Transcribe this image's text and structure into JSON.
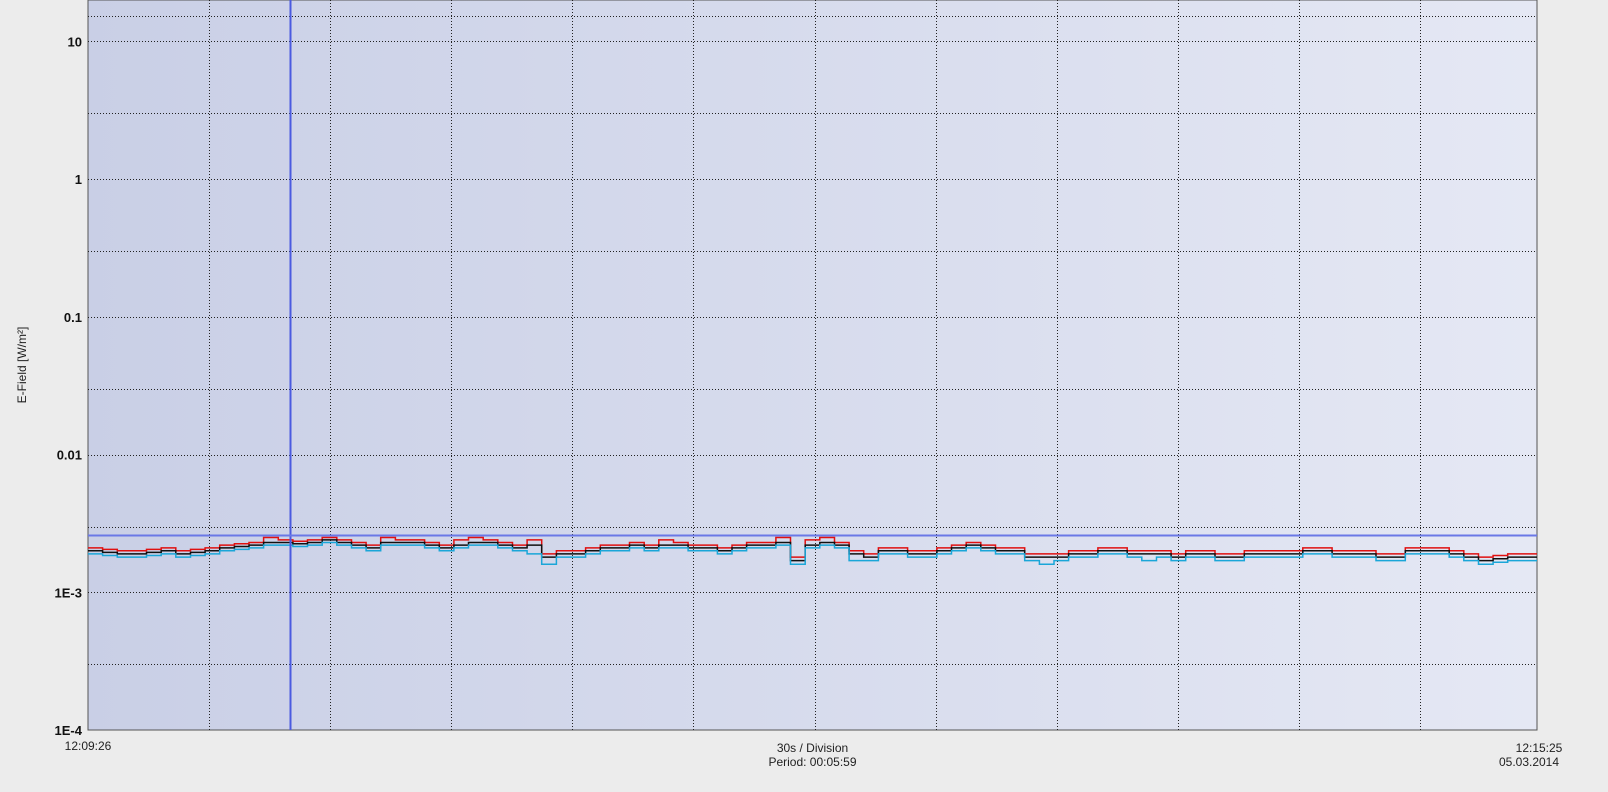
{
  "chart_data": {
    "type": "line",
    "ylabel": "E-Field [W/m²]",
    "yscale": "log",
    "ylim": [
      0.0001,
      20
    ],
    "y_tick_values": [
      10,
      1,
      0.1,
      0.01,
      0.001,
      0.0001
    ],
    "y_tick_labels": [
      "10",
      "1",
      "0.1",
      "0.01",
      "1E-3",
      "1E-4"
    ],
    "x_start_label": "12:09:26",
    "x_end_time": "12:15:25",
    "x_end_date": "05.03.2014",
    "x_center_line1": "30s / Division",
    "x_center_line2": "Period: 00:05:59",
    "x_range_seconds": [
      0,
      359
    ],
    "grid": true,
    "cursor_vertical_seconds": 50,
    "cursor_horizontal_value": 0.0026,
    "series": [
      {
        "color": "#e01010",
        "values": [
          0.0021,
          0.00205,
          0.002,
          0.002,
          0.00205,
          0.0021,
          0.002,
          0.00205,
          0.0021,
          0.0022,
          0.00225,
          0.0023,
          0.0025,
          0.0024,
          0.00235,
          0.0024,
          0.0025,
          0.0024,
          0.0023,
          0.0022,
          0.0025,
          0.0024,
          0.0024,
          0.0023,
          0.0022,
          0.0024,
          0.0025,
          0.0024,
          0.0023,
          0.0022,
          0.0024,
          0.0019,
          0.002,
          0.002,
          0.0021,
          0.0022,
          0.0022,
          0.0023,
          0.0022,
          0.0024,
          0.0023,
          0.0022,
          0.0022,
          0.0021,
          0.0022,
          0.0023,
          0.0023,
          0.0025,
          0.0018,
          0.0024,
          0.0025,
          0.0023,
          0.002,
          0.0019,
          0.0021,
          0.0021,
          0.002,
          0.002,
          0.0021,
          0.0022,
          0.0023,
          0.0022,
          0.0021,
          0.0021,
          0.0019,
          0.0019,
          0.0019,
          0.002,
          0.002,
          0.0021,
          0.0021,
          0.002,
          0.002,
          0.002,
          0.0019,
          0.002,
          0.002,
          0.0019,
          0.0019,
          0.002,
          0.002,
          0.002,
          0.002,
          0.0021,
          0.0021,
          0.002,
          0.002,
          0.002,
          0.0019,
          0.0019,
          0.0021,
          0.0021,
          0.0021,
          0.002,
          0.0019,
          0.0018,
          0.00185,
          0.0019,
          0.0019
        ],
        "name": ""
      },
      {
        "color": "#111111",
        "values": [
          0.002,
          0.00195,
          0.0019,
          0.0019,
          0.00195,
          0.002,
          0.0019,
          0.00195,
          0.002,
          0.0021,
          0.00215,
          0.0022,
          0.0023,
          0.0023,
          0.00225,
          0.0023,
          0.0024,
          0.0023,
          0.0022,
          0.0021,
          0.0023,
          0.0023,
          0.0023,
          0.0022,
          0.0021,
          0.0022,
          0.0023,
          0.0023,
          0.0022,
          0.0021,
          0.0022,
          0.0018,
          0.0019,
          0.0019,
          0.002,
          0.0021,
          0.0021,
          0.0022,
          0.0021,
          0.0022,
          0.0022,
          0.0021,
          0.0021,
          0.002,
          0.0021,
          0.0022,
          0.0022,
          0.0023,
          0.0017,
          0.0022,
          0.0023,
          0.0022,
          0.0019,
          0.0018,
          0.002,
          0.002,
          0.0019,
          0.0019,
          0.002,
          0.0021,
          0.0022,
          0.0021,
          0.002,
          0.002,
          0.0018,
          0.0018,
          0.0018,
          0.0019,
          0.0019,
          0.002,
          0.002,
          0.0019,
          0.0019,
          0.0019,
          0.0018,
          0.0019,
          0.0019,
          0.0018,
          0.0018,
          0.0019,
          0.0019,
          0.0019,
          0.0019,
          0.002,
          0.002,
          0.0019,
          0.0019,
          0.0019,
          0.0018,
          0.0018,
          0.002,
          0.002,
          0.002,
          0.0019,
          0.0018,
          0.0017,
          0.00175,
          0.0018,
          0.0018
        ],
        "name": ""
      },
      {
        "color": "#1aa6d8",
        "values": [
          0.0019,
          0.00185,
          0.0018,
          0.0018,
          0.00185,
          0.0019,
          0.0018,
          0.00185,
          0.0019,
          0.002,
          0.00205,
          0.0021,
          0.0022,
          0.0022,
          0.00215,
          0.0022,
          0.0023,
          0.0022,
          0.0021,
          0.002,
          0.0022,
          0.0022,
          0.0022,
          0.0021,
          0.002,
          0.0021,
          0.0022,
          0.0022,
          0.0021,
          0.002,
          0.0019,
          0.0016,
          0.0018,
          0.0018,
          0.0019,
          0.002,
          0.002,
          0.0021,
          0.002,
          0.0021,
          0.0021,
          0.002,
          0.002,
          0.0019,
          0.002,
          0.0021,
          0.0021,
          0.0022,
          0.0016,
          0.0021,
          0.0022,
          0.0021,
          0.0017,
          0.0017,
          0.0019,
          0.0019,
          0.0018,
          0.0018,
          0.0019,
          0.002,
          0.0021,
          0.002,
          0.0019,
          0.0019,
          0.0017,
          0.0016,
          0.0017,
          0.0018,
          0.0018,
          0.0019,
          0.0019,
          0.0018,
          0.0017,
          0.0018,
          0.0017,
          0.0018,
          0.0018,
          0.0017,
          0.0017,
          0.0018,
          0.0018,
          0.0018,
          0.0018,
          0.0019,
          0.0019,
          0.0018,
          0.0018,
          0.0018,
          0.0017,
          0.0017,
          0.0019,
          0.0019,
          0.0019,
          0.0018,
          0.0017,
          0.0016,
          0.00165,
          0.0017,
          0.0017
        ],
        "name": ""
      }
    ]
  }
}
